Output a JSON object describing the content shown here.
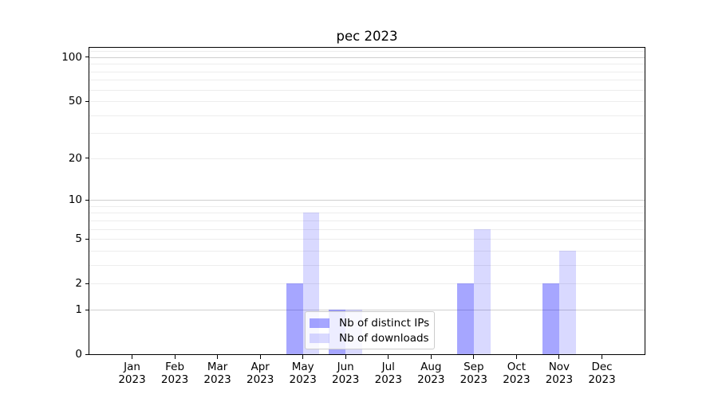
{
  "title": "pec 2023",
  "chart_data": {
    "type": "bar",
    "title": "pec 2023",
    "x_months": [
      "Jan",
      "Feb",
      "Mar",
      "Apr",
      "May",
      "Jun",
      "Jul",
      "Aug",
      "Sep",
      "Oct",
      "Nov",
      "Dec"
    ],
    "x_year": "2023",
    "categories": [
      "Jan 2023",
      "Feb 2023",
      "Mar 2023",
      "Apr 2023",
      "May 2023",
      "Jun 2023",
      "Jul 2023",
      "Aug 2023",
      "Sep 2023",
      "Oct 2023",
      "Nov 2023",
      "Dec 2023"
    ],
    "series": [
      {
        "name": "Nb of distinct IPs",
        "color": "rgba(0,0,255,0.35)",
        "values": [
          0,
          0,
          0,
          0,
          2,
          1,
          0,
          0,
          2,
          0,
          2,
          0
        ]
      },
      {
        "name": "Nb of downloads",
        "color": "rgba(0,0,255,0.15)",
        "values": [
          0,
          0,
          0,
          0,
          8,
          1,
          0,
          0,
          6,
          0,
          4,
          0
        ]
      }
    ],
    "yscale": "log1p",
    "ylim": [
      0,
      116
    ],
    "yticks": [
      0,
      1,
      2,
      5,
      10,
      20,
      50,
      100
    ],
    "grid": {
      "major": [
        1,
        10,
        100
      ],
      "minor": [
        2,
        3,
        4,
        5,
        6,
        7,
        8,
        9,
        20,
        30,
        40,
        50,
        60,
        70,
        80,
        90,
        110
      ],
      "major_color": "#cfcfcf",
      "minor_color": "#ededed"
    },
    "legend_position": "lower center",
    "axis_color": "#000000"
  }
}
